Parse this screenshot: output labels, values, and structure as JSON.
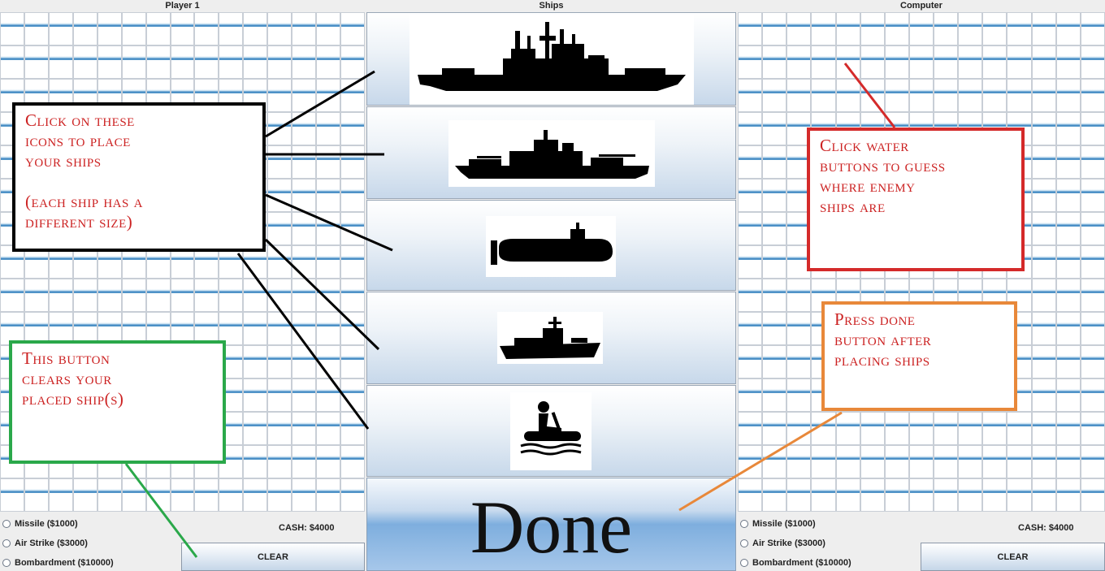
{
  "player_panel": {
    "title": "Player 1"
  },
  "ships_panel": {
    "title": "Ships",
    "done_label": "Done"
  },
  "computer_panel": {
    "title": "Computer"
  },
  "player_controls": {
    "options": [
      "Missile ($1000)",
      "Air Strike ($3000)",
      "Bombardment ($10000)"
    ],
    "cash": "CASH: $4000",
    "clear_label": "CLEAR"
  },
  "computer_controls": {
    "options": [
      "Missile ($1000)",
      "Air Strike ($3000)",
      "Bombardment ($10000)"
    ],
    "cash": "CASH: $4000",
    "clear_label": "CLEAR"
  },
  "annotations": {
    "place_ships": "Click on these\nicons to place\nyour ships\n\n(each ship has a\ndifferent size)",
    "guess": "Click water\nbuttons to guess\nwhere enemy\nships are",
    "clear": "This button\nclears your\nplaced ship(s)",
    "done": "Press done\nbutton after\nplacing ships"
  },
  "colors": {
    "annotation_text": "#cc2222",
    "place_box": "#000000",
    "guess_box": "#d42a2a",
    "clear_box": "#2aa84a",
    "done_box": "#e8883a"
  }
}
